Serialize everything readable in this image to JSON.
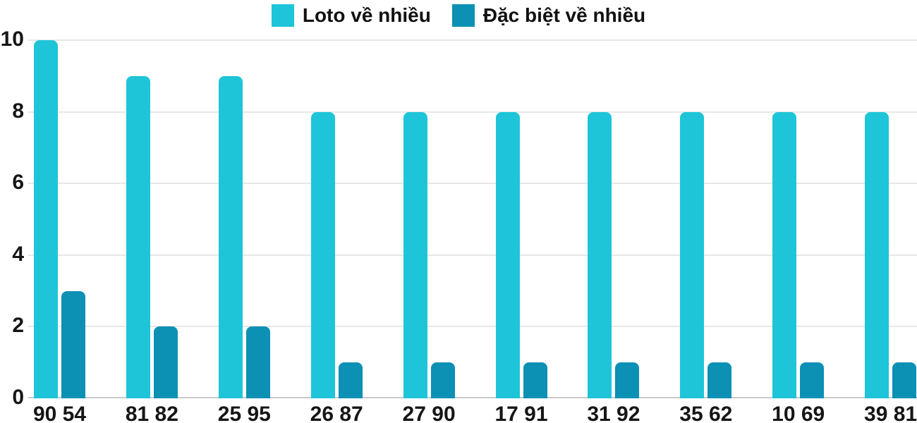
{
  "chart_data": {
    "type": "bar",
    "title": "",
    "categories": [
      "90 54",
      "81 82",
      "25 95",
      "26 87",
      "27 90",
      "17 91",
      "31 92",
      "35 62",
      "10 69",
      "39 81"
    ],
    "series": [
      {
        "name": "Loto về nhiều",
        "color": "#1ec5d9",
        "values": [
          10,
          9,
          9,
          8,
          8,
          8,
          8,
          8,
          8,
          8
        ]
      },
      {
        "name": "Đặc biệt về nhiều",
        "color": "#0c90b4",
        "values": [
          3,
          2,
          2,
          1,
          1,
          1,
          1,
          1,
          1,
          1
        ]
      }
    ],
    "xlabel": "",
    "ylabel": "",
    "ylim": [
      0,
      10
    ],
    "yticks": [
      0,
      2,
      4,
      6,
      8,
      10
    ],
    "grid": true,
    "legend_position": "top",
    "colors": {
      "grid": "#e7e7e7",
      "baseline": "#c9c9c9",
      "text": "#161616"
    }
  }
}
